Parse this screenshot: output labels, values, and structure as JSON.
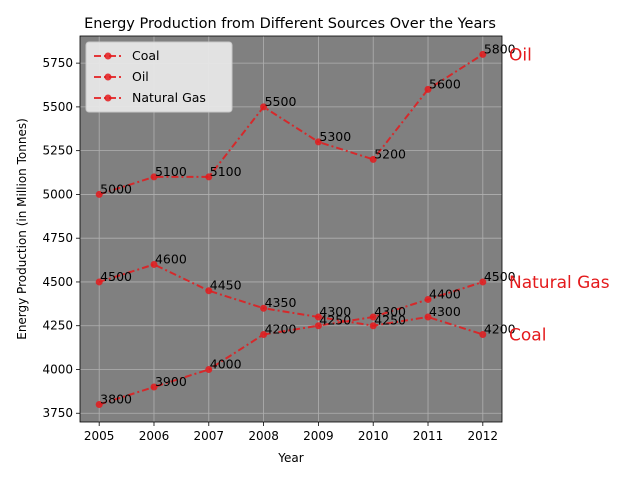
{
  "chart_data": {
    "type": "line",
    "title": "Energy Production from Different Sources Over the Years",
    "xlabel": "Year",
    "ylabel": "Energy Production (in Million Tonnes)",
    "x": [
      2005,
      2006,
      2007,
      2008,
      2009,
      2010,
      2011,
      2012
    ],
    "xlim": [
      2004.65,
      2012.35
    ],
    "ylim": [
      3700,
      5905
    ],
    "yticks": [
      3750,
      4000,
      4250,
      4500,
      4750,
      5000,
      5250,
      5500,
      5750
    ],
    "grid": true,
    "legend_position": "top-left",
    "line_color": "#e41a1c",
    "background_color": "#808080",
    "series": [
      {
        "name": "Coal",
        "values": [
          4500,
          4600,
          4450,
          4350,
          4300,
          4250,
          4300,
          4200
        ],
        "end_label": "Coal"
      },
      {
        "name": "Oil",
        "values": [
          5000,
          5100,
          5100,
          5500,
          5300,
          5200,
          5600,
          5800
        ],
        "end_label": "Oil"
      },
      {
        "name": "Natural Gas",
        "values": [
          3800,
          3900,
          4000,
          4200,
          4250,
          4300,
          4400,
          4500
        ],
        "end_label": "Natural Gas"
      }
    ]
  }
}
